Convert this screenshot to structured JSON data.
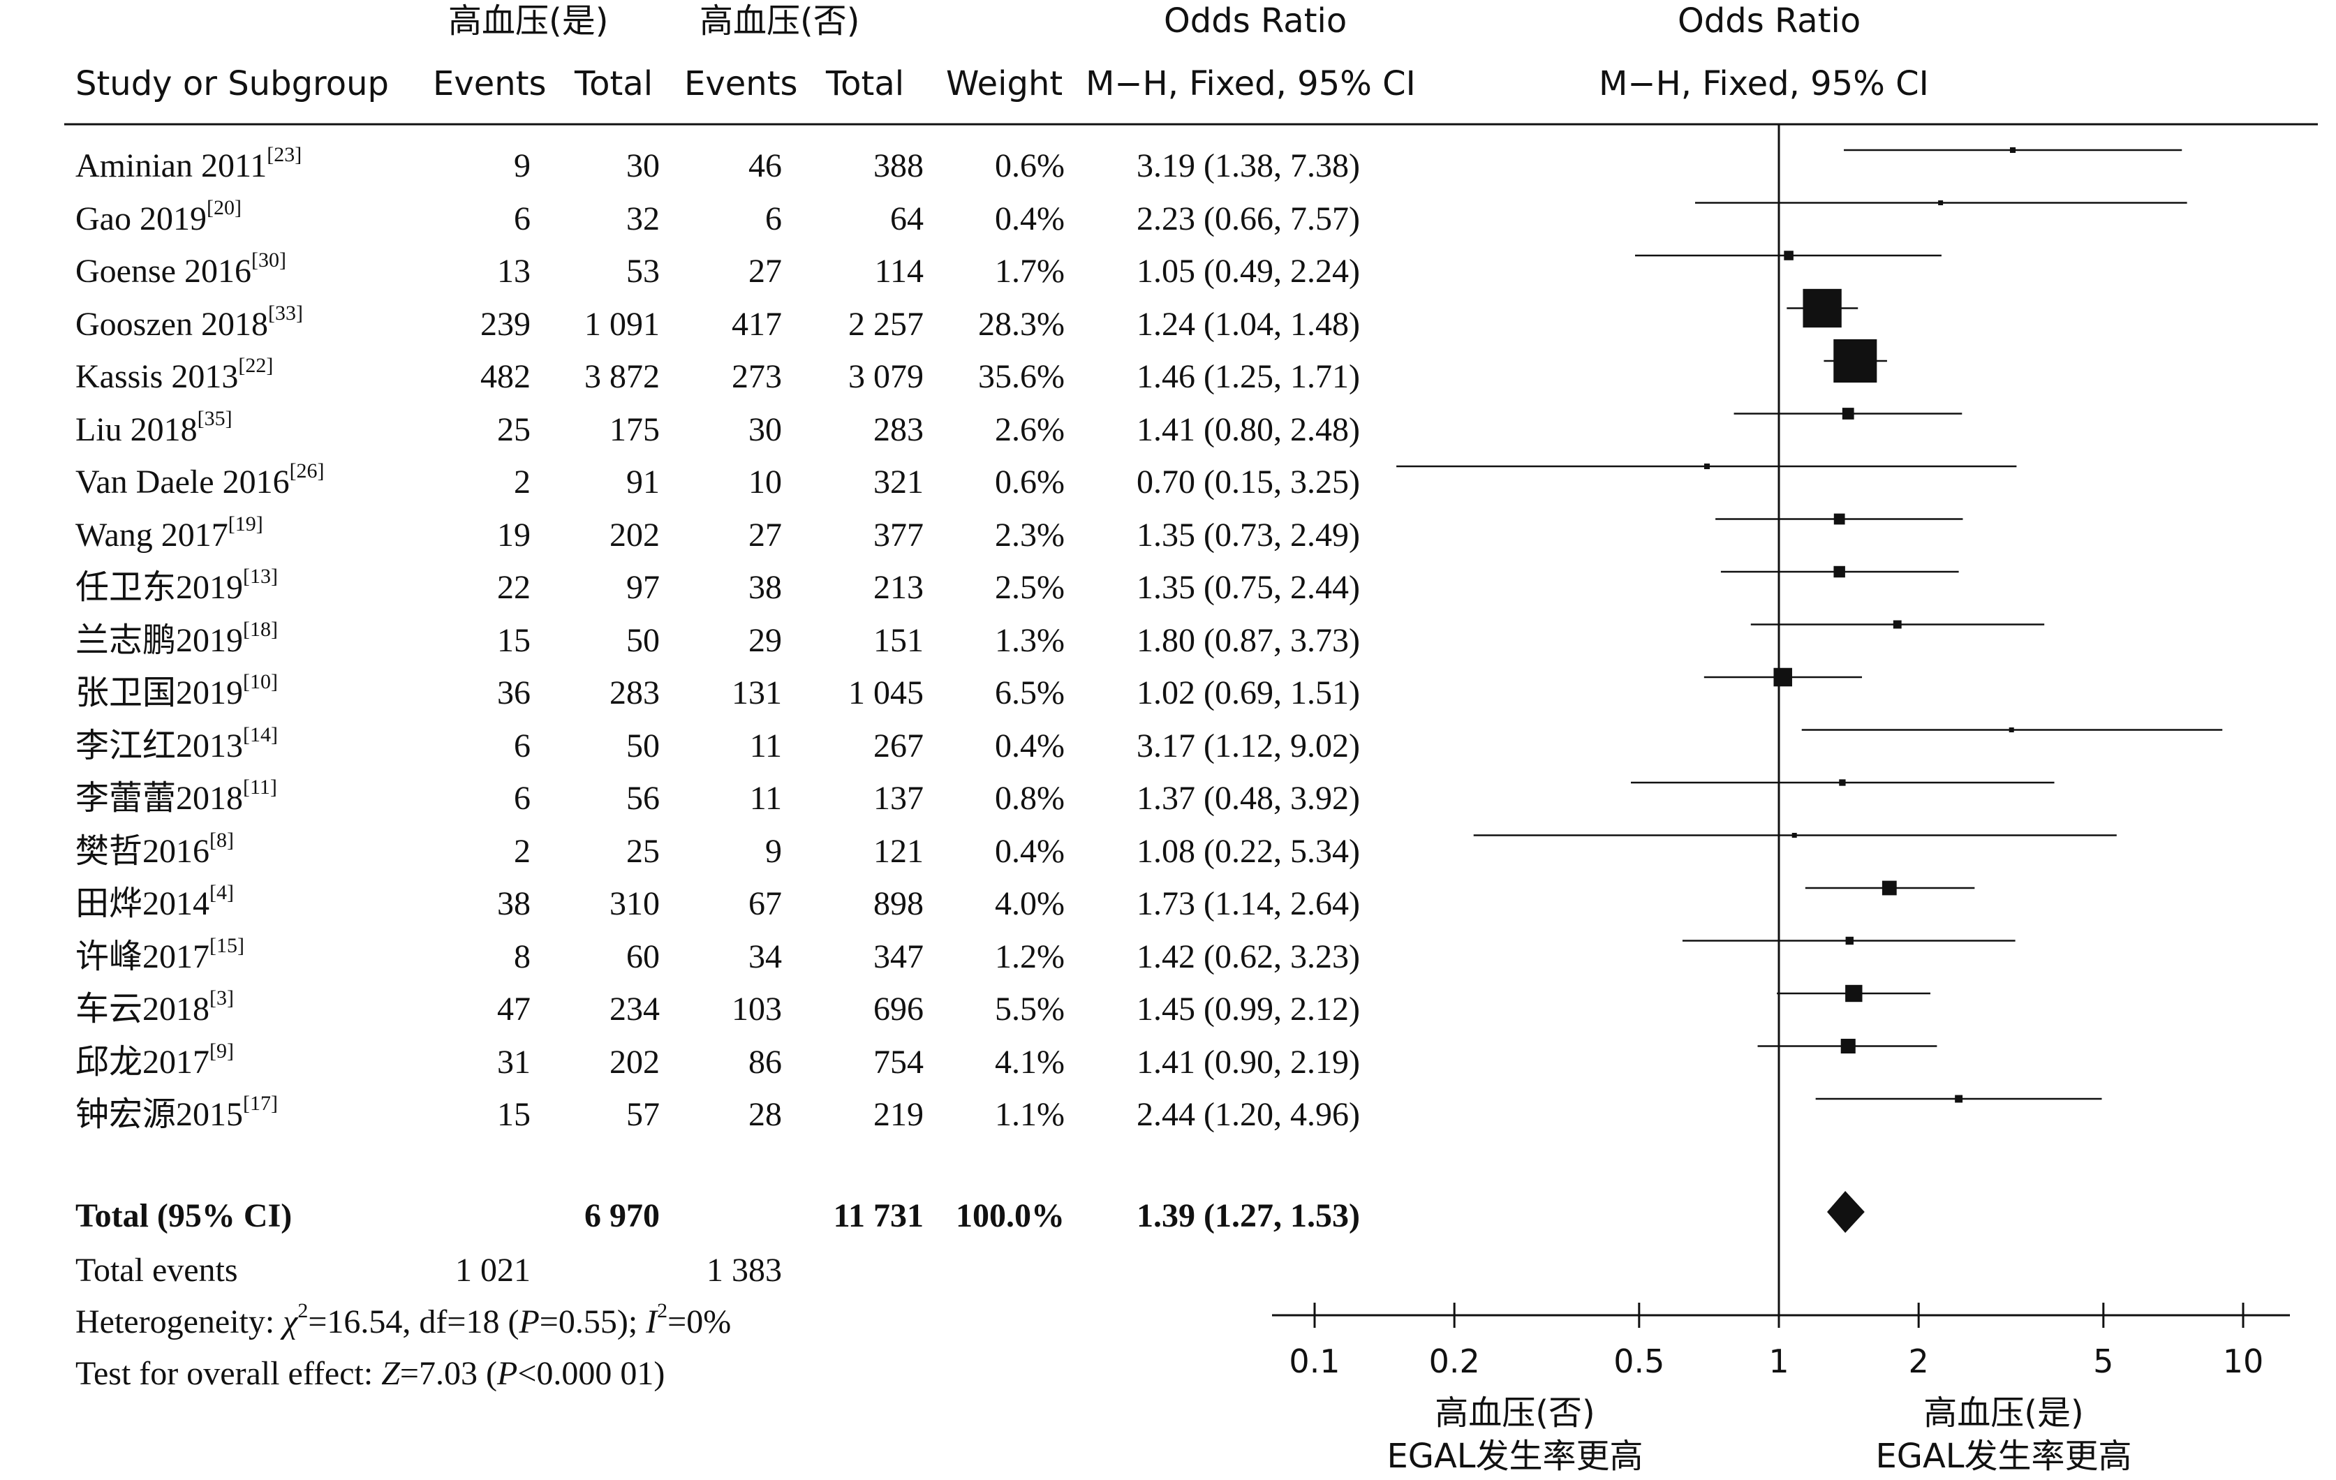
{
  "header": {
    "group_yes": "高血压(是)",
    "group_no": "高血压(否)",
    "or_table": "Odds Ratio",
    "or_plot": "Odds Ratio",
    "study": "Study or Subgroup",
    "events_yes": "Events",
    "total_yes": "Total",
    "events_no": "Events",
    "total_no": "Total",
    "weight": "Weight",
    "method_table": "M−H, Fixed, 95% CI",
    "method_plot": "M−H, Fixed, 95% CI"
  },
  "studies": [
    {
      "name": "Aminian 2011",
      "ref": "[23]",
      "e1": "9",
      "t1": "30",
      "e2": "46",
      "t2": "388",
      "weight": "0.6%",
      "ci_text": "3.19 (1.38, 7.38)"
    },
    {
      "name": "Gao 2019",
      "ref": "[20]",
      "e1": "6",
      "t1": "32",
      "e2": "6",
      "t2": "64",
      "weight": "0.4%",
      "ci_text": "2.23 (0.66, 7.57)"
    },
    {
      "name": "Goense 2016",
      "ref": "[30]",
      "e1": "13",
      "t1": "53",
      "e2": "27",
      "t2": "114",
      "weight": "1.7%",
      "ci_text": "1.05 (0.49, 2.24)"
    },
    {
      "name": "Gooszen 2018",
      "ref": "[33]",
      "e1": "239",
      "t1": "1 091",
      "e2": "417",
      "t2": "2 257",
      "weight": "28.3%",
      "ci_text": "1.24 (1.04, 1.48)"
    },
    {
      "name": "Kassis 2013",
      "ref": "[22]",
      "e1": "482",
      "t1": "3 872",
      "e2": "273",
      "t2": "3 079",
      "weight": "35.6%",
      "ci_text": "1.46 (1.25, 1.71)"
    },
    {
      "name": "Liu 2018",
      "ref": "[35]",
      "e1": "25",
      "t1": "175",
      "e2": "30",
      "t2": "283",
      "weight": "2.6%",
      "ci_text": "1.41 (0.80, 2.48)"
    },
    {
      "name": "Van Daele 2016",
      "ref": "[26]",
      "e1": "2",
      "t1": "91",
      "e2": "10",
      "t2": "321",
      "weight": "0.6%",
      "ci_text": "0.70 (0.15, 3.25)"
    },
    {
      "name": "Wang 2017",
      "ref": "[19]",
      "e1": "19",
      "t1": "202",
      "e2": "27",
      "t2": "377",
      "weight": "2.3%",
      "ci_text": "1.35 (0.73, 2.49)"
    },
    {
      "name": "任卫东2019",
      "ref": "[13]",
      "e1": "22",
      "t1": "97",
      "e2": "38",
      "t2": "213",
      "weight": "2.5%",
      "ci_text": "1.35 (0.75, 2.44)"
    },
    {
      "name": "兰志鹏2019",
      "ref": "[18]",
      "e1": "15",
      "t1": "50",
      "e2": "29",
      "t2": "151",
      "weight": "1.3%",
      "ci_text": "1.80 (0.87, 3.73)"
    },
    {
      "name": "张卫国2019",
      "ref": "[10]",
      "e1": "36",
      "t1": "283",
      "e2": "131",
      "t2": "1 045",
      "weight": "6.5%",
      "ci_text": "1.02 (0.69, 1.51)"
    },
    {
      "name": "李江红2013",
      "ref": "[14]",
      "e1": "6",
      "t1": "50",
      "e2": "11",
      "t2": "267",
      "weight": "0.4%",
      "ci_text": "3.17 (1.12, 9.02)"
    },
    {
      "name": "李蕾蕾2018",
      "ref": "[11]",
      "e1": "6",
      "t1": "56",
      "e2": "11",
      "t2": "137",
      "weight": "0.8%",
      "ci_text": "1.37 (0.48, 3.92)"
    },
    {
      "name": "樊哲2016",
      "ref": "[8]",
      "e1": "2",
      "t1": "25",
      "e2": "9",
      "t2": "121",
      "weight": "0.4%",
      "ci_text": "1.08 (0.22, 5.34)"
    },
    {
      "name": "田烨2014",
      "ref": "[4]",
      "e1": "38",
      "t1": "310",
      "e2": "67",
      "t2": "898",
      "weight": "4.0%",
      "ci_text": "1.73 (1.14, 2.64)"
    },
    {
      "name": "许峰2017",
      "ref": "[15]",
      "e1": "8",
      "t1": "60",
      "e2": "34",
      "t2": "347",
      "weight": "1.2%",
      "ci_text": "1.42 (0.62, 3.23)"
    },
    {
      "name": "车云2018",
      "ref": "[3]",
      "e1": "47",
      "t1": "234",
      "e2": "103",
      "t2": "696",
      "weight": "5.5%",
      "ci_text": "1.45 (0.99, 2.12)"
    },
    {
      "name": "邱龙2017",
      "ref": "[9]",
      "e1": "31",
      "t1": "202",
      "e2": "86",
      "t2": "754",
      "weight": "4.1%",
      "ci_text": "1.41 (0.90, 2.19)"
    },
    {
      "name": "钟宏源2015",
      "ref": "[17]",
      "e1": "15",
      "t1": "57",
      "e2": "28",
      "t2": "219",
      "weight": "1.1%",
      "ci_text": "2.44 (1.20, 4.96)"
    }
  ],
  "total": {
    "label": "Total (95% CI)",
    "t1": "6 970",
    "t2": "11 731",
    "weight": "100.0%",
    "ci_text": "1.39 (1.27, 1.53)"
  },
  "total_events": {
    "label": "Total events",
    "e1": "1 021",
    "e2": "1 383"
  },
  "heterogeneity": {
    "prefix": "Heterogeneity: ",
    "chi_symbol": "χ",
    "chi_exp": "2",
    "chi_value": "=16.54, df=18 (",
    "p_symbol": "P",
    "p_value": "=0.55); ",
    "i_symbol": "I",
    "i_exp": "2",
    "i_value": "=0%"
  },
  "overall": {
    "prefix": "Test for overall effect: ",
    "z_symbol": "Z",
    "z_value": "=7.03 (",
    "p_symbol": "P",
    "p_value": "<0.000 01)"
  },
  "axis": {
    "ticks": [
      0.1,
      0.2,
      0.5,
      1,
      2,
      5,
      10
    ],
    "tick_labels": [
      "0.1",
      "0.2",
      "0.5",
      "1",
      "2",
      "5",
      "10"
    ],
    "scale": "log",
    "left_label_1": "高血压(否)",
    "left_label_2": "EGAL发生率更高",
    "right_label_1": "高血压(是)",
    "right_label_2": "EGAL发生率更高"
  },
  "chart_data": {
    "type": "forest",
    "x_scale": "log",
    "xlim": [
      0.1,
      10
    ],
    "null_line": 1,
    "studies": [
      {
        "or": 3.19,
        "lo": 1.38,
        "hi": 7.38,
        "w": 0.6
      },
      {
        "or": 2.23,
        "lo": 0.66,
        "hi": 7.57,
        "w": 0.4
      },
      {
        "or": 1.05,
        "lo": 0.49,
        "hi": 2.24,
        "w": 1.7
      },
      {
        "or": 1.24,
        "lo": 1.04,
        "hi": 1.48,
        "w": 28.3
      },
      {
        "or": 1.46,
        "lo": 1.25,
        "hi": 1.71,
        "w": 35.6
      },
      {
        "or": 1.41,
        "lo": 0.8,
        "hi": 2.48,
        "w": 2.6
      },
      {
        "or": 0.7,
        "lo": 0.15,
        "hi": 3.25,
        "w": 0.6
      },
      {
        "or": 1.35,
        "lo": 0.73,
        "hi": 2.49,
        "w": 2.3
      },
      {
        "or": 1.35,
        "lo": 0.75,
        "hi": 2.44,
        "w": 2.5
      },
      {
        "or": 1.8,
        "lo": 0.87,
        "hi": 3.73,
        "w": 1.3
      },
      {
        "or": 1.02,
        "lo": 0.69,
        "hi": 1.51,
        "w": 6.5
      },
      {
        "or": 3.17,
        "lo": 1.12,
        "hi": 9.02,
        "w": 0.4
      },
      {
        "or": 1.37,
        "lo": 0.48,
        "hi": 3.92,
        "w": 0.8
      },
      {
        "or": 1.08,
        "lo": 0.22,
        "hi": 5.34,
        "w": 0.4
      },
      {
        "or": 1.73,
        "lo": 1.14,
        "hi": 2.64,
        "w": 4.0
      },
      {
        "or": 1.42,
        "lo": 0.62,
        "hi": 3.23,
        "w": 1.2
      },
      {
        "or": 1.45,
        "lo": 0.99,
        "hi": 2.12,
        "w": 5.5
      },
      {
        "or": 1.41,
        "lo": 0.9,
        "hi": 2.19,
        "w": 4.1
      },
      {
        "or": 2.44,
        "lo": 1.2,
        "hi": 4.96,
        "w": 1.1
      }
    ],
    "pooled": {
      "or": 1.39,
      "lo": 1.27,
      "hi": 1.53
    }
  }
}
